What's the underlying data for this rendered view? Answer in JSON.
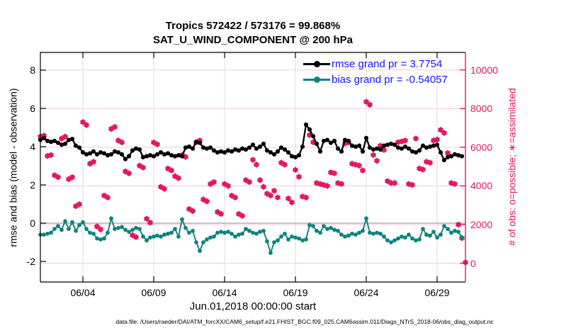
{
  "title": {
    "line1": "Tropics 572422 / 573176 = 99.868%",
    "line2": "SAT_U_WIND_COMPONENT @ 200 hPa"
  },
  "axes": {
    "left": {
      "label": "rmse and bias (model - observation)",
      "ticks": [
        {
          "label": "8",
          "value": 8
        },
        {
          "label": "6",
          "value": 6
        },
        {
          "label": "4",
          "value": 4
        },
        {
          "label": "2",
          "value": 2
        },
        {
          "label": "0",
          "value": 0
        },
        {
          "label": "-2",
          "value": -2
        }
      ],
      "color": "#000000"
    },
    "right": {
      "label": "# of obs: o=possible; ∗=assimilated",
      "ticks": [
        {
          "label": "10000",
          "value": 10000
        },
        {
          "label": "8000",
          "value": 8000
        },
        {
          "label": "6000",
          "value": 6000
        },
        {
          "label": "4000",
          "value": 4000
        },
        {
          "label": "2000",
          "value": 2000
        },
        {
          "label": "0",
          "value": 0
        }
      ],
      "color": "#e2175f"
    },
    "x": {
      "label": "Jun.01,2018 00:00:00 start",
      "ticks": [
        {
          "label": "06/04",
          "day": 3
        },
        {
          "label": "06/09",
          "day": 8
        },
        {
          "label": "06/14",
          "day": 13
        },
        {
          "label": "06/19",
          "day": 18
        },
        {
          "label": "06/24",
          "day": 23
        },
        {
          "label": "06/29",
          "day": 28
        }
      ]
    }
  },
  "legend": [
    {
      "label": "rmse grand pr = 3.7754",
      "color": "#000000",
      "text_color": "#1414ff"
    },
    {
      "label": "bias grand pr = -0.54057",
      "color": "#0e837c",
      "text_color": "#1414ff"
    }
  ],
  "footer": "data file: /Users/raeder/DAI/ATM_forcXX/CAM6_setup/f.e21.FHIST_BGC.f09_025.CAM6assim.011/Diags_NTrS_2018-06/obs_diag_output.nc",
  "colors": {
    "rmse": "#000000",
    "bias": "#0e837c",
    "obs": "#e2175f",
    "grid_pink": "#f6c9d7",
    "grid_gray": "#dcdcdc",
    "zero_line": "#b0b0b0"
  },
  "chart_data": {
    "type": "line",
    "title": "Tropics 572422 / 573176 = 99.868% | SAT_U_WIND_COMPONENT @ 200 hPa",
    "xlabel": "Jun.01,2018 00:00:00 start",
    "ylabel_left": "rmse and bias (model - observation)",
    "ylabel_right": "# of obs: o=possible; ∗=assimilated",
    "x_start": "2018-06-01 00:00",
    "x_step_hours": 6,
    "x_tick_labels": [
      "06/04",
      "06/09",
      "06/14",
      "06/19",
      "06/24",
      "06/29"
    ],
    "ylim_left": [
      -3,
      9
    ],
    "yticks_left": [
      8,
      6,
      4,
      2,
      0,
      -2
    ],
    "yticks_right": [
      10000,
      8000,
      6000,
      4000,
      2000,
      0
    ],
    "grid": true,
    "legend_position": "top-right-inside",
    "rmse_grand_prior": 3.7754,
    "bias_grand_prior": -0.54057,
    "obs_assimilated_total": 572422,
    "obs_possible_total": 573176,
    "obs_assimilated_percent": 99.868,
    "series": [
      {
        "name": "rmse",
        "axis": "left",
        "marker": "filled-circle-line",
        "values": [
          4.35,
          4.45,
          4.3,
          4.25,
          4.3,
          4.2,
          4.1,
          4.15,
          4.35,
          4.4,
          4.05,
          3.95,
          3.7,
          3.6,
          3.65,
          3.75,
          3.6,
          3.7,
          3.65,
          3.55,
          3.6,
          3.75,
          3.7,
          3.6,
          3.35,
          3.5,
          3.8,
          3.9,
          3.85,
          3.45,
          3.5,
          3.55,
          3.5,
          3.6,
          3.7,
          3.6,
          3.65,
          3.55,
          3.5,
          3.55,
          3.5,
          3.95,
          4.0,
          3.9,
          4.25,
          4.2,
          3.95,
          3.9,
          3.95,
          3.8,
          3.7,
          3.75,
          3.7,
          3.8,
          3.75,
          3.85,
          3.8,
          3.9,
          3.85,
          3.95,
          4.1,
          3.9,
          4.0,
          4.15,
          3.8,
          3.7,
          3.6,
          3.75,
          3.95,
          3.85,
          3.7,
          3.5,
          3.45,
          3.55,
          4.0,
          5.15,
          4.9,
          4.55,
          4.15,
          3.75,
          4.3,
          4.35,
          4.2,
          4.3,
          3.9,
          3.75,
          4.35,
          4.3,
          4.05,
          4.0,
          4.05,
          3.75,
          4.45,
          3.95,
          3.85,
          3.9,
          3.85,
          4.05,
          4.1,
          4.15,
          4.1,
          3.95,
          3.9,
          4.0,
          3.9,
          3.75,
          3.7,
          3.8,
          4.05,
          3.95,
          4.0,
          4.05,
          4.1,
          3.7,
          3.3,
          3.45,
          3.5,
          3.6,
          3.55,
          3.5
        ]
      },
      {
        "name": "bias",
        "axis": "left",
        "marker": "filled-circle-line",
        "values": [
          -0.6,
          -0.6,
          -0.55,
          -0.5,
          -0.3,
          -0.15,
          -0.35,
          0.1,
          -0.3,
          0.05,
          -0.4,
          -0.1,
          0.05,
          -0.3,
          -0.5,
          -0.55,
          -0.8,
          -0.85,
          -0.8,
          -0.5,
          0.25,
          -0.3,
          -0.25,
          -0.2,
          -0.35,
          -0.45,
          -0.35,
          -0.25,
          -0.3,
          -0.7,
          -0.9,
          -0.75,
          -0.7,
          -0.65,
          -0.7,
          -0.6,
          -0.55,
          -0.5,
          -0.3,
          -0.7,
          0.2,
          -0.25,
          -0.5,
          -0.4,
          -1.0,
          -1.45,
          -1.0,
          -0.85,
          -0.75,
          -0.7,
          -0.5,
          -0.45,
          -0.5,
          -0.45,
          -0.55,
          -0.7,
          -0.6,
          -0.55,
          -0.3,
          -0.4,
          -0.5,
          -0.55,
          -0.45,
          -0.4,
          -0.95,
          -1.55,
          -1.0,
          -0.9,
          -0.7,
          -0.55,
          -0.85,
          -0.7,
          -0.75,
          -0.8,
          -0.9,
          -0.85,
          -0.1,
          -0.15,
          -0.4,
          -0.5,
          -0.15,
          -0.3,
          -0.25,
          -0.35,
          -0.4,
          -0.6,
          -0.7,
          -0.65,
          -0.55,
          -0.6,
          -0.5,
          -0.4,
          0.25,
          -0.5,
          -0.55,
          -0.5,
          -0.55,
          -0.7,
          -0.9,
          -1.0,
          -0.9,
          -0.8,
          -0.7,
          -0.75,
          -0.6,
          -0.8,
          -0.9,
          -0.85,
          -0.3,
          -0.6,
          -0.65,
          -0.45,
          -0.75,
          -0.6,
          -0.15,
          -0.3,
          -0.5,
          -0.4,
          -0.45,
          -0.75
        ]
      },
      {
        "name": "obs_count",
        "axis": "right",
        "marker": "o-and-asterisk",
        "note": "possible and assimilated counts overlap (99.868% assimilated)",
        "values": [
          6550,
          6600,
          5550,
          5600,
          4550,
          4450,
          6450,
          6550,
          4350,
          4450,
          2950,
          3050,
          7300,
          7150,
          5150,
          5250,
          1900,
          1750,
          3500,
          3400,
          6950,
          7050,
          6350,
          6250,
          4750,
          4650,
          1450,
          1350,
          5050,
          4950,
          2300,
          2100,
          6250,
          6150,
          3950,
          3850,
          4900,
          4800,
          4500,
          4400,
          5600,
          5500,
          2800,
          2700,
          6250,
          6350,
          3300,
          3200,
          4100,
          4200,
          2650,
          2550,
          4100,
          4000,
          3500,
          3400,
          2550,
          2450,
          4300,
          4200,
          5350,
          5100,
          4300,
          3950,
          3600,
          3500,
          3750,
          3400,
          5200,
          5100,
          3350,
          3150,
          4830,
          4470,
          3450,
          3400,
          6630,
          6260,
          4150,
          4100,
          4050,
          4000,
          4700,
          4650,
          4150,
          4100,
          6200,
          6250,
          5150,
          5100,
          5050,
          4800,
          8350,
          8200,
          5600,
          5300,
          6080,
          5860,
          4250,
          4150,
          4150,
          6260,
          6300,
          6350,
          4100,
          4050,
          6450,
          4900,
          4850,
          5250,
          5200,
          6350,
          6400,
          6900,
          6740,
          5700,
          4150,
          4100,
          2000,
          1300,
          40
        ]
      }
    ]
  }
}
